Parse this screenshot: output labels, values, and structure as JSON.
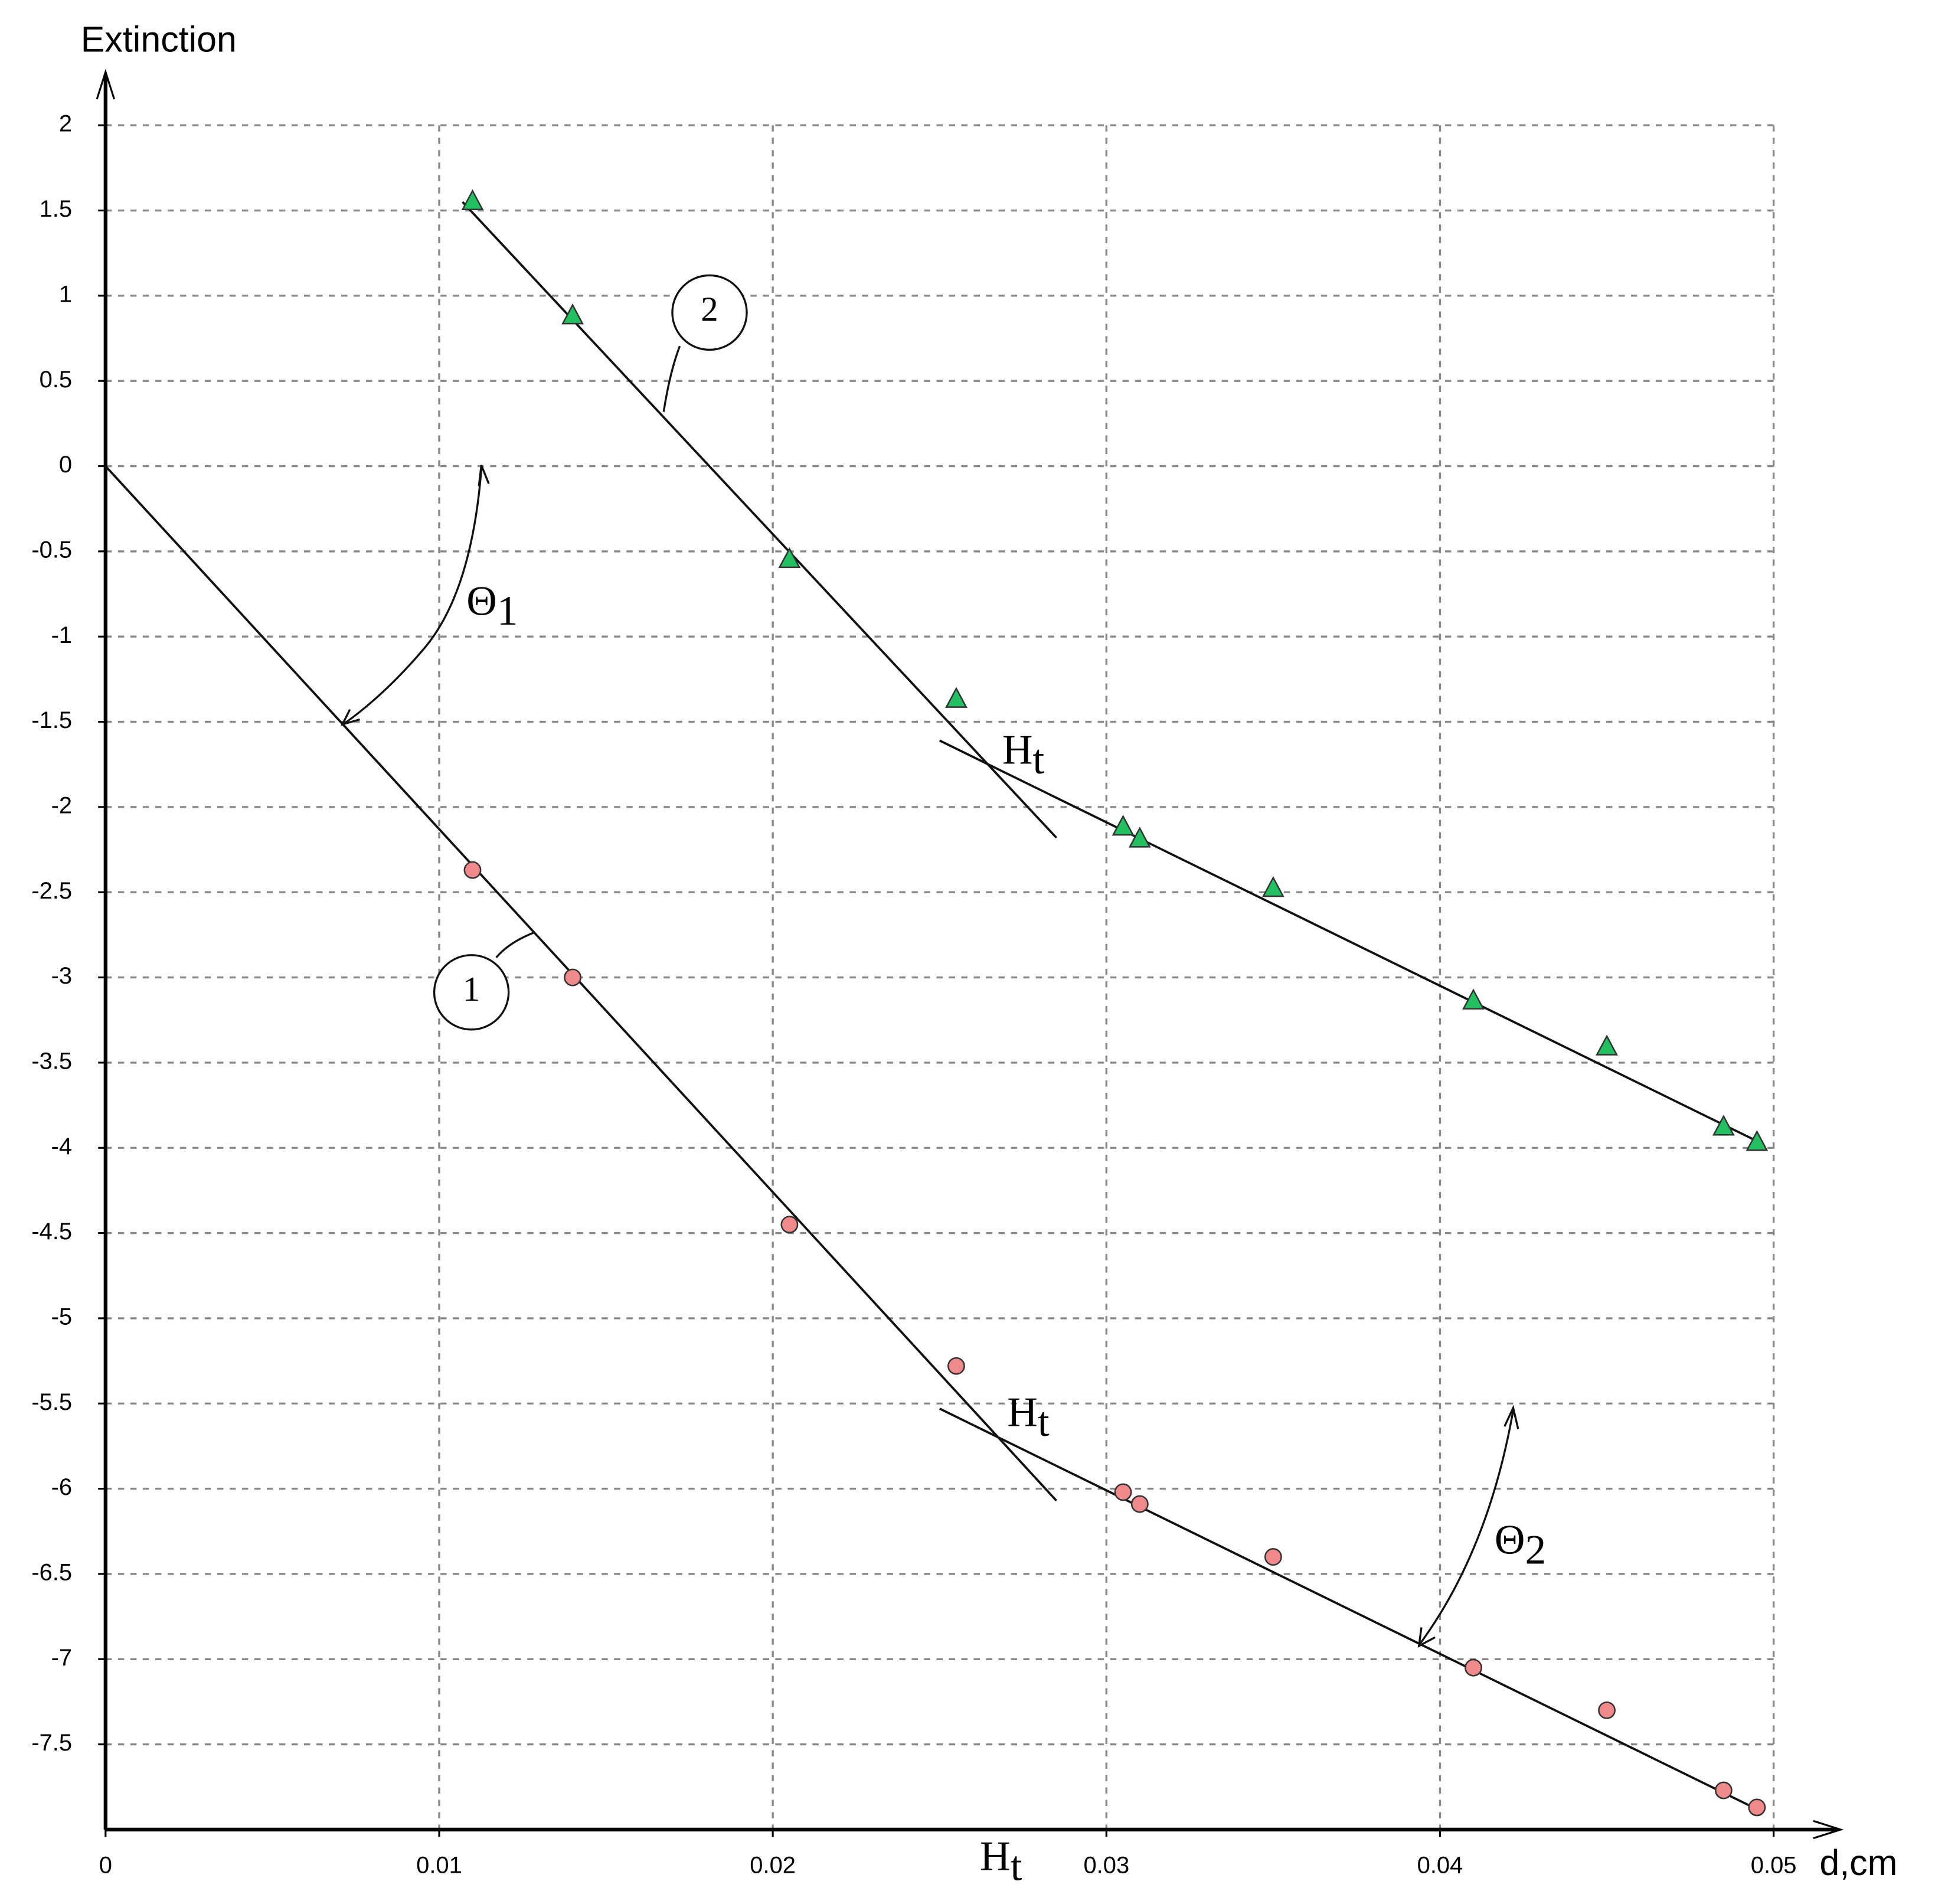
{
  "chart_data": {
    "type": "scatter",
    "ylabel": "Extinction",
    "xlabel": "d,cm",
    "xlim": [
      0,
      0.05
    ],
    "ylim": [
      -8,
      2
    ],
    "xticks": [
      0,
      0.01,
      0.02,
      0.03,
      0.04,
      0.05
    ],
    "yticks": [
      2,
      1.5,
      1,
      0.5,
      0,
      -0.5,
      -1,
      -1.5,
      -2,
      -2.5,
      -3,
      -3.5,
      -4,
      -4.5,
      -5,
      -5.5,
      -6,
      -6.5,
      -7,
      -7.5
    ],
    "grid": true,
    "x": [
      0.011,
      0.014,
      0.0205,
      0.0255,
      0.0305,
      0.031,
      0.035,
      0.041,
      0.045,
      0.0485,
      0.0495
    ],
    "series": [
      {
        "marker": "circle",
        "color": "#f08a8a",
        "values": [
          -2.37,
          -3.0,
          -4.45,
          -5.28,
          -6.02,
          -6.09,
          -6.4,
          -7.05,
          -7.3,
          -7.77,
          -7.87
        ]
      },
      {
        "marker": "triangle",
        "color": "#22c060",
        "values": [
          1.55,
          0.88,
          -0.55,
          -1.37,
          -2.12,
          -2.19,
          -2.48,
          -3.14,
          -3.41,
          -3.88,
          -3.97
        ]
      }
    ],
    "fit_lines": [
      {
        "x": [
          0,
          0.0285
        ],
        "y": [
          0,
          -6.07
        ]
      },
      {
        "x": [
          0.025,
          0.0496
        ],
        "y": [
          -5.53,
          -7.89
        ]
      },
      {
        "x": [
          0.0107,
          0.0285
        ],
        "y": [
          1.55,
          -2.18
        ]
      },
      {
        "x": [
          0.025,
          0.0496
        ],
        "y": [
          -1.61,
          -3.97
        ]
      }
    ],
    "annotations": [
      {
        "text": "1"
      },
      {
        "text": "2"
      },
      {
        "text": "Θ",
        "sub": "1"
      },
      {
        "text": "Θ",
        "sub": "2"
      },
      {
        "text": "H",
        "sub": "t"
      },
      {
        "text": "H",
        "sub": "t"
      },
      {
        "text": "H",
        "sub": "t"
      }
    ]
  }
}
